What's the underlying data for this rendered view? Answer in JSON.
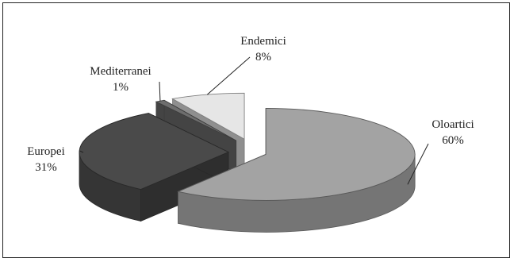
{
  "chart_data": {
    "type": "pie",
    "style": "3d-exploded",
    "categories": [
      "Oloartici",
      "Europei",
      "Mediterranei",
      "Endemici"
    ],
    "values": [
      60,
      31,
      1,
      8
    ],
    "value_labels": [
      "60%",
      "31%",
      "1%",
      "8%"
    ],
    "colors": {
      "Oloartici": "#a3a3a3",
      "Europei": "#4a4a4a",
      "Mediterranei": "#6e6e6e",
      "Endemici": "#e6e6e6"
    },
    "legend": "none",
    "title": ""
  }
}
